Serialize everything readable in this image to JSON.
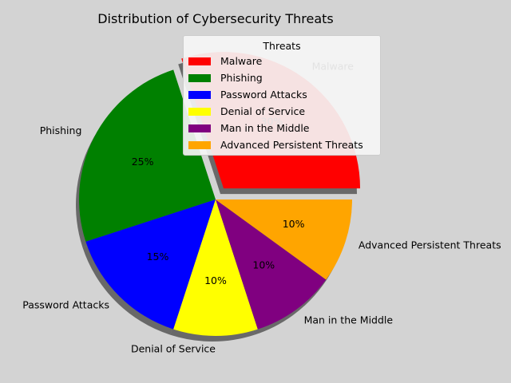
{
  "chart_data": {
    "type": "pie",
    "title": "Distribution of Cybersecurity Threats",
    "categories": [
      "Malware",
      "Phishing",
      "Password Attacks",
      "Denial of Service",
      "Man in the Middle",
      "Advanced Persistent Threats"
    ],
    "values": [
      30,
      25,
      15,
      10,
      10,
      10
    ],
    "labels_pct": [
      "30%",
      "25%",
      "15%",
      "10%",
      "10%",
      "10%"
    ],
    "colors": [
      "#ff0000",
      "#008000",
      "#0000ff",
      "#ffff00",
      "#800080",
      "#ffa500"
    ],
    "exploded": [
      true,
      false,
      false,
      false,
      false,
      false
    ],
    "shadow": true,
    "start_angle_deg": 0,
    "legend": {
      "title": "Threats",
      "placement": "upper-right"
    }
  }
}
